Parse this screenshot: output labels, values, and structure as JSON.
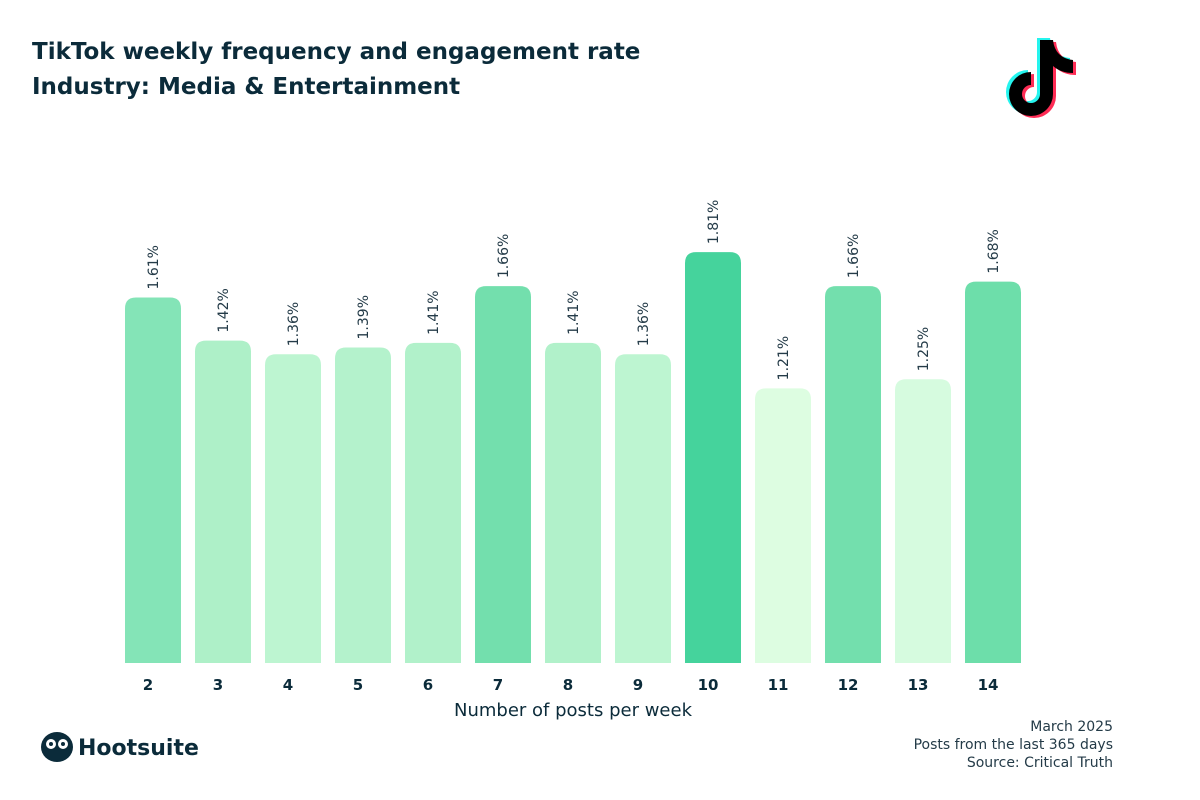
{
  "chart_data": {
    "type": "bar",
    "title": "TikTok weekly frequency and engagement rate",
    "subtitle": "Industry: Media & Entertainment",
    "x_label": "Number of posts per week",
    "categories": [
      "2",
      "3",
      "4",
      "5",
      "6",
      "7",
      "8",
      "9",
      "10",
      "11",
      "12",
      "13",
      "14"
    ],
    "values": [
      1.61,
      1.42,
      1.36,
      1.39,
      1.41,
      1.66,
      1.41,
      1.36,
      1.81,
      1.21,
      1.66,
      1.25,
      1.68
    ],
    "value_labels": [
      "1.61%",
      "1.42%",
      "1.36%",
      "1.39%",
      "1.41%",
      "1.66%",
      "1.41%",
      "1.36%",
      "1.81%",
      "1.21%",
      "1.66%",
      "1.25%",
      "1.68%"
    ],
    "colors": [
      "#84e4b7",
      "#aef0c8",
      "#bdf5d1",
      "#b4f2cc",
      "#b1f1ca",
      "#73dfad",
      "#b1f1ca",
      "#bdf5d1",
      "#45d39c",
      "#ddfde1",
      "#73dfad",
      "#d6fbdf",
      "#6ddeaa"
    ],
    "notes": [
      "March 2025",
      "Posts from the last 365 days",
      "Source: Critical Truth"
    ]
  },
  "branding": {
    "logo": "Hootsuite"
  }
}
